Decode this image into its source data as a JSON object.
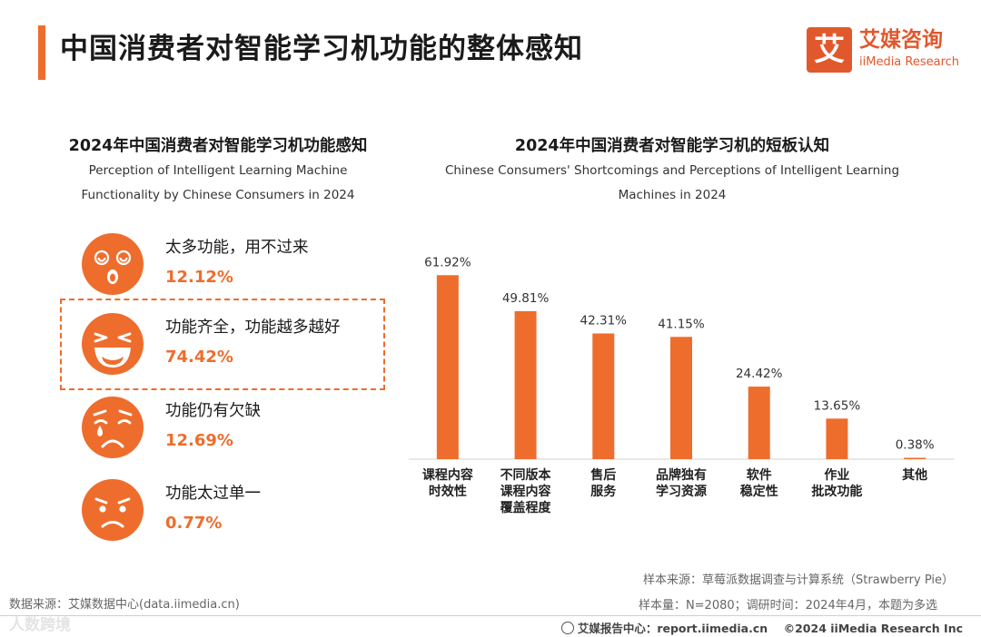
{
  "header": {
    "title": "中国消费者对智能学习机功能的整体感知",
    "logo_mark": "艾",
    "logo_cn": "艾媒咨询",
    "logo_en": "iiMedia Research"
  },
  "left_section": {
    "title": "2024年中国消费者对智能学习机功能感知",
    "subtitle_line1": "Perception of Intelligent Learning Machine",
    "subtitle_line2": "Functionality by Chinese Consumers in 2024",
    "items": [
      {
        "label": "太多功能，用不过来",
        "value": "12.12%",
        "icon": "dizzy-face-icon"
      },
      {
        "label": "功能齐全，功能越多越好",
        "value": "74.42%",
        "icon": "laughing-face-icon"
      },
      {
        "label": "功能仍有欠缺",
        "value": "12.69%",
        "icon": "crying-face-icon"
      },
      {
        "label": "功能太过单一",
        "value": "0.77%",
        "icon": "frowning-face-icon"
      }
    ]
  },
  "right_section": {
    "title": "2024年中国消费者对智能学习机的短板认知",
    "subtitle_line1": "Chinese Consumers' Shortcomings and Perceptions of Intelligent Learning",
    "subtitle_line2": "Machines in 2024"
  },
  "chart_data": {
    "type": "bar",
    "title": "2024年中国消费者对智能学习机的短板认知",
    "categories": [
      [
        "课程内容",
        "时效性"
      ],
      [
        "不同版本",
        "课程内容",
        "覆盖程度"
      ],
      [
        "售后",
        "服务"
      ],
      [
        "品牌独有",
        "学习资源"
      ],
      [
        "软件",
        "稳定性"
      ],
      [
        "作业",
        "批改功能"
      ],
      [
        "其他"
      ]
    ],
    "values": [
      61.92,
      49.81,
      42.31,
      41.15,
      24.42,
      13.65,
      0.38
    ],
    "value_labels": [
      "61.92%",
      "49.81%",
      "42.31%",
      "41.15%",
      "24.42%",
      "13.65%",
      "0.38%"
    ],
    "ylim": [
      0,
      62
    ],
    "grid": false,
    "bar_color": "#ee6d2d"
  },
  "footer": {
    "source_left": "数据来源：艾媒数据中心(data.iimedia.cn)",
    "sample_source": "样本来源：草莓派数据调查与计算系统（Strawberry Pie）",
    "sample_size": "样本量：N=2080；调研时间：2024年4月，本题为多选",
    "report_center": "艾媒报告中心：report.iimedia.cn",
    "copyright": "©2024  iiMedia Research  Inc",
    "watermark": "人数跨境"
  },
  "colors": {
    "accent": "#ee6d2d",
    "logo": "#e2582d"
  }
}
